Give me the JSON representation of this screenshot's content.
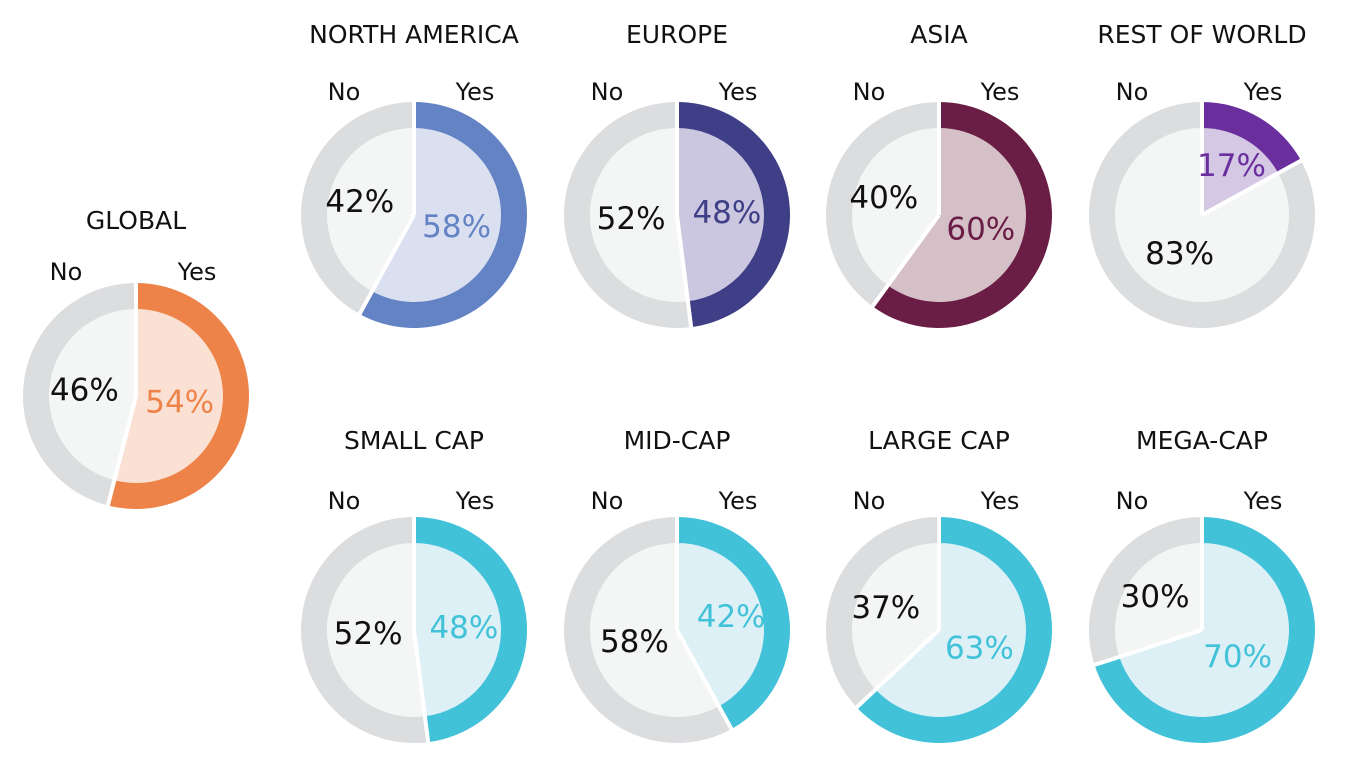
{
  "chart_data": [
    {
      "type": "pie",
      "title": "GLOBAL",
      "categories": [
        "No",
        "Yes"
      ],
      "values": [
        46,
        54
      ],
      "value_labels": [
        "46%",
        "54%"
      ],
      "yes_color": "#ee834a",
      "yes_fill": "#fbe1d3"
    },
    {
      "type": "pie",
      "title": "NORTH AMERICA",
      "categories": [
        "No",
        "Yes"
      ],
      "values": [
        42,
        58
      ],
      "value_labels": [
        "42%",
        "58%"
      ],
      "yes_color": "#6383c4",
      "yes_fill": "#dbe0f1"
    },
    {
      "type": "pie",
      "title": "EUROPE",
      "categories": [
        "No",
        "Yes"
      ],
      "values": [
        52,
        48
      ],
      "value_labels": [
        "52%",
        "48%"
      ],
      "yes_color": "#3e3f86",
      "yes_fill": "#ccc7e0"
    },
    {
      "type": "pie",
      "title": "ASIA",
      "categories": [
        "No",
        "Yes"
      ],
      "values": [
        40,
        60
      ],
      "value_labels": [
        "40%",
        "60%"
      ],
      "yes_color": "#6a1d45",
      "yes_fill": "#d5c0c8"
    },
    {
      "type": "pie",
      "title": "REST OF WORLD",
      "categories": [
        "No",
        "Yes"
      ],
      "values": [
        83,
        17
      ],
      "value_labels": [
        "83%",
        "17%"
      ],
      "yes_color": "#6a2f9d",
      "yes_fill": "#d5c8e5"
    },
    {
      "type": "pie",
      "title": "SMALL CAP",
      "categories": [
        "No",
        "Yes"
      ],
      "values": [
        52,
        48
      ],
      "value_labels": [
        "52%",
        "48%"
      ],
      "yes_color": "#42c2d9",
      "yes_fill": "#dcf0f6"
    },
    {
      "type": "pie",
      "title": "MID-CAP",
      "categories": [
        "No",
        "Yes"
      ],
      "values": [
        58,
        42
      ],
      "value_labels": [
        "58%",
        "42%"
      ],
      "yes_color": "#42c2d9",
      "yes_fill": "#dcf0f6"
    },
    {
      "type": "pie",
      "title": "LARGE CAP",
      "categories": [
        "No",
        "Yes"
      ],
      "values": [
        37,
        63
      ],
      "value_labels": [
        "37%",
        "63%"
      ],
      "yes_color": "#42c2d9",
      "yes_fill": "#dcf0f6"
    },
    {
      "type": "pie",
      "title": "MEGA-CAP",
      "categories": [
        "No",
        "Yes"
      ],
      "values": [
        30,
        70
      ],
      "value_labels": [
        "30%",
        "70%"
      ],
      "yes_color": "#42c2d9",
      "yes_fill": "#dcf0f6"
    }
  ],
  "colors": {
    "no_ring": "#dcdddf",
    "no_fill": "#f4f6f5",
    "separator": "#ffffff",
    "no_label": "#111111"
  }
}
